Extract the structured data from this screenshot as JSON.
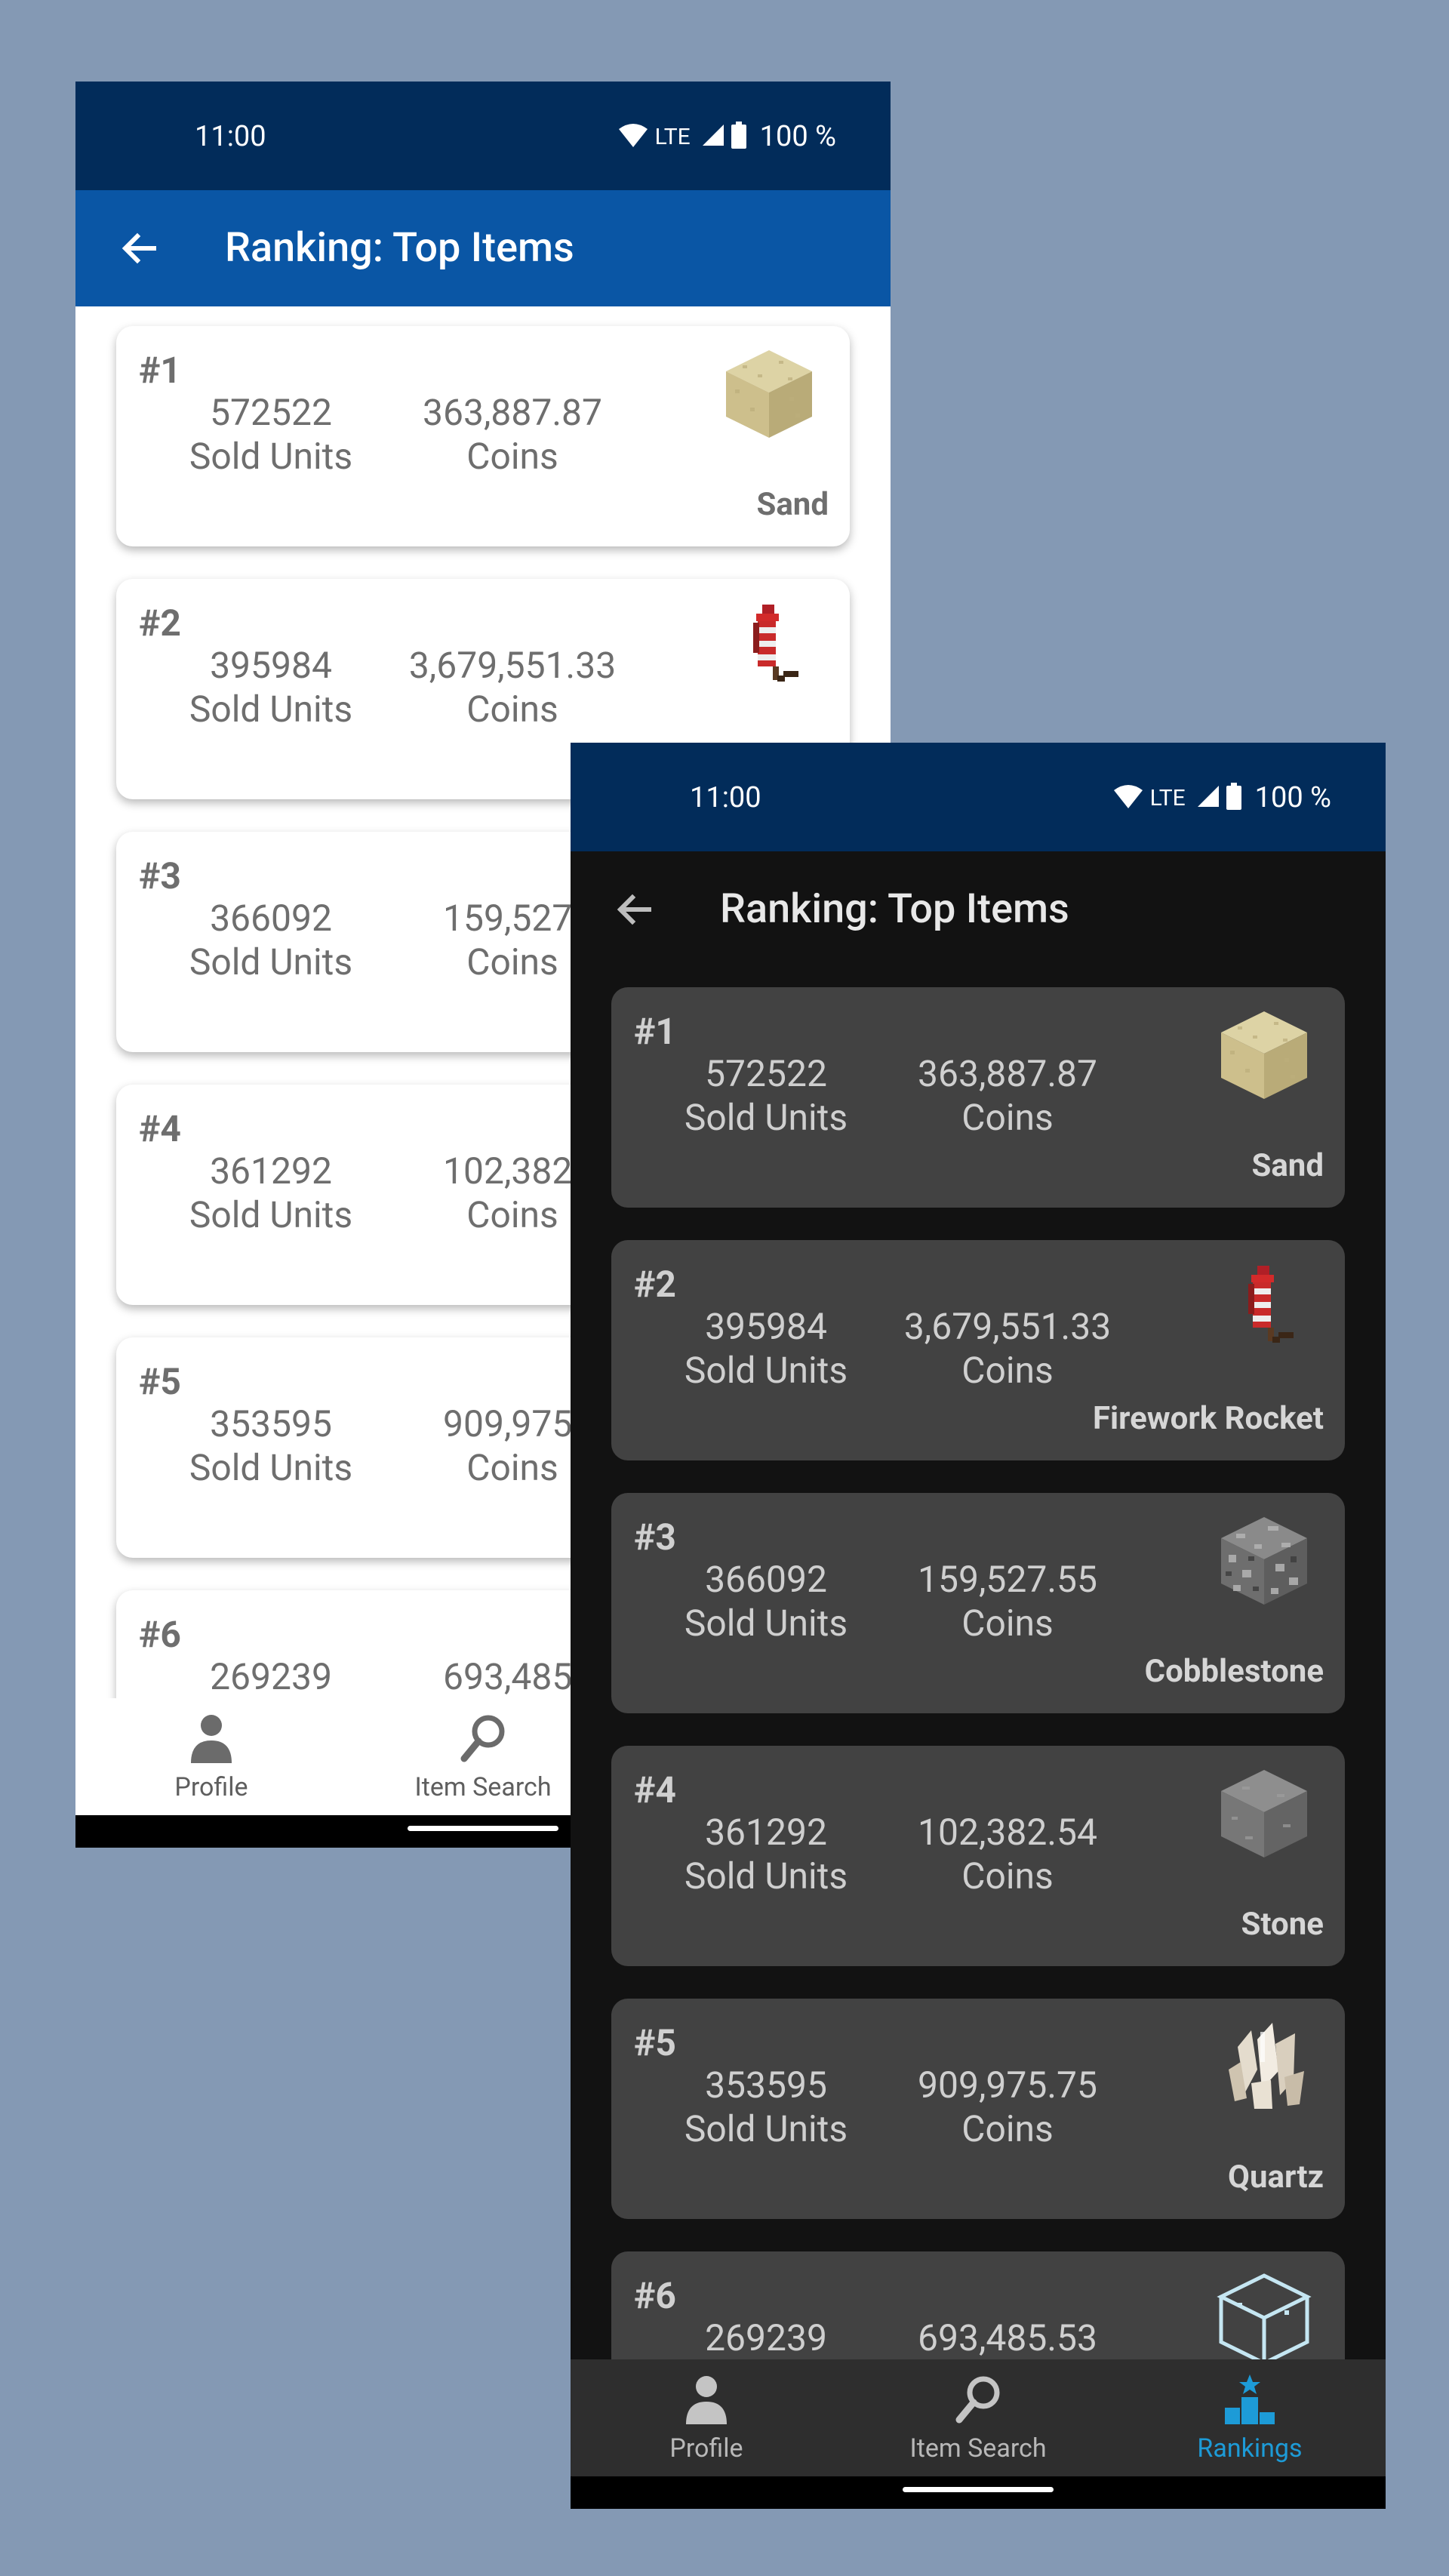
{
  "status_bar": {
    "time": "11:00",
    "network": "LTE",
    "battery": "100 %"
  },
  "app_bar": {
    "title": "Ranking: Top Items"
  },
  "light_items": [
    {
      "rank": "#1",
      "units_value": "572522",
      "units_label": "Sold Units",
      "coins_value": "363,887.87",
      "coins_label": "Coins",
      "name": "Sand",
      "icon": "sand-block-icon"
    },
    {
      "rank": "#2",
      "units_value": "395984",
      "units_label": "Sold Units",
      "coins_value": "3,679,551.33",
      "coins_label": "Coins",
      "name": "",
      "icon": "firework-rocket-icon"
    },
    {
      "rank": "#3",
      "units_value": "366092",
      "units_label": "Sold Units",
      "coins_value": "159,527.",
      "coins_label": "Coins",
      "name": "",
      "icon": "cobblestone-block-icon"
    },
    {
      "rank": "#4",
      "units_value": "361292",
      "units_label": "Sold Units",
      "coins_value": "102,382.",
      "coins_label": "Coins",
      "name": "",
      "icon": "stone-block-icon"
    },
    {
      "rank": "#5",
      "units_value": "353595",
      "units_label": "Sold Units",
      "coins_value": "909,975.",
      "coins_label": "Coins",
      "name": "",
      "icon": "quartz-icon"
    },
    {
      "rank": "#6",
      "units_value": "269239",
      "units_label": "",
      "coins_value": "693,485.",
      "coins_label": "",
      "name": "",
      "icon": "glass-block-icon"
    }
  ],
  "dark_items": [
    {
      "rank": "#1",
      "units_value": "572522",
      "units_label": "Sold Units",
      "coins_value": "363,887.87",
      "coins_label": "Coins",
      "name": "Sand",
      "icon": "sand-block-icon"
    },
    {
      "rank": "#2",
      "units_value": "395984",
      "units_label": "Sold Units",
      "coins_value": "3,679,551.33",
      "coins_label": "Coins",
      "name": "Firework Rocket",
      "icon": "firework-rocket-icon"
    },
    {
      "rank": "#3",
      "units_value": "366092",
      "units_label": "Sold Units",
      "coins_value": "159,527.55",
      "coins_label": "Coins",
      "name": "Cobblestone",
      "icon": "cobblestone-block-icon"
    },
    {
      "rank": "#4",
      "units_value": "361292",
      "units_label": "Sold Units",
      "coins_value": "102,382.54",
      "coins_label": "Coins",
      "name": "Stone",
      "icon": "stone-block-icon"
    },
    {
      "rank": "#5",
      "units_value": "353595",
      "units_label": "Sold Units",
      "coins_value": "909,975.75",
      "coins_label": "Coins",
      "name": "Quartz",
      "icon": "quartz-icon"
    },
    {
      "rank": "#6",
      "units_value": "269239",
      "units_label": "",
      "coins_value": "693,485.53",
      "coins_label": "",
      "name": "",
      "icon": "glass-block-icon"
    }
  ],
  "light_nav": [
    {
      "label": "Profile",
      "icon": "person-icon"
    },
    {
      "label": "Item Search",
      "icon": "magnifier-icon"
    }
  ],
  "dark_nav": [
    {
      "label": "Profile",
      "icon": "person-icon"
    },
    {
      "label": "Item Search",
      "icon": "magnifier-icon"
    },
    {
      "label": "Rankings",
      "icon": "podium-icon",
      "active": true
    }
  ],
  "colors": {
    "background": "#8499b4",
    "status_bar": "#022c5a",
    "app_bar_light": "#0a56a5",
    "card_dark": "#424242",
    "active_nav": "#1d9bd7"
  }
}
